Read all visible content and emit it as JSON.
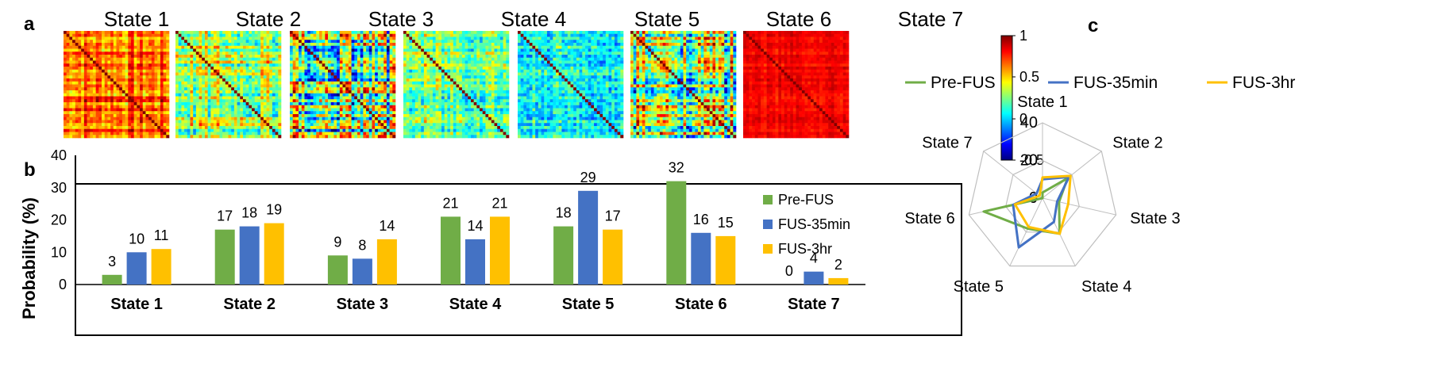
{
  "panel_labels": {
    "a": "a",
    "b": "b",
    "c": "c"
  },
  "colors": {
    "pre": "#70AD47",
    "fus35": "#4472C4",
    "fus3hr": "#FFC000",
    "axis": "#000000",
    "grid": "#BFBFBF"
  },
  "heatmaps": {
    "titles": [
      "State 1",
      "State 2",
      "State 3",
      "State 4",
      "State 5",
      "State 6",
      "State 7"
    ],
    "colorbar": {
      "ticks": [
        "1",
        "0.5",
        "0",
        "-0.5"
      ],
      "range": [
        -0.5,
        1
      ]
    }
  },
  "chart_data": [
    {
      "type": "bar",
      "title": "",
      "xlabel": "",
      "ylabel": "Probability  (%)",
      "ylim": [
        0,
        40
      ],
      "yticks": [
        "0",
        "10",
        "20",
        "30",
        "40"
      ],
      "categories": [
        "State 1",
        "State 2",
        "State 3",
        "State 4",
        "State 5",
        "State 6",
        "State 7"
      ],
      "series": [
        {
          "name": "Pre-FUS",
          "values": [
            3,
            17,
            9,
            21,
            18,
            32,
            0
          ]
        },
        {
          "name": "FUS-35min",
          "values": [
            10,
            18,
            8,
            14,
            29,
            16,
            4
          ]
        },
        {
          "name": "FUS-3hr",
          "values": [
            11,
            19,
            14,
            21,
            17,
            15,
            2
          ]
        }
      ],
      "value_labels": [
        [
          "3",
          "17",
          "9",
          "21",
          "18",
          "32",
          "0"
        ],
        [
          "10",
          "18",
          "8",
          "14",
          "29",
          "16",
          "4"
        ],
        [
          "11",
          "19",
          "14",
          "21",
          "17",
          "15",
          "2"
        ]
      ],
      "legend": [
        "Pre-FUS",
        "FUS-35min",
        "FUS-3hr"
      ],
      "legend_position": "top-right",
      "grid": false
    },
    {
      "type": "radar",
      "title": "",
      "axes": [
        "State 1",
        "State 2",
        "State 3",
        "State 4",
        "State 5",
        "State 6",
        "State 7"
      ],
      "range": [
        0,
        40
      ],
      "rings": [
        "0",
        "20",
        "40"
      ],
      "series": [
        {
          "name": "Pre-FUS",
          "values": [
            3,
            17,
            9,
            21,
            18,
            32,
            0
          ]
        },
        {
          "name": "FUS-35min",
          "values": [
            10,
            18,
            8,
            14,
            29,
            16,
            4
          ]
        },
        {
          "name": "FUS-3hr",
          "values": [
            11,
            19,
            14,
            21,
            17,
            15,
            2
          ]
        }
      ],
      "legend": [
        "Pre-FUS",
        "FUS-35min",
        "FUS-3hr"
      ],
      "legend_position": "top",
      "grid": true
    }
  ]
}
